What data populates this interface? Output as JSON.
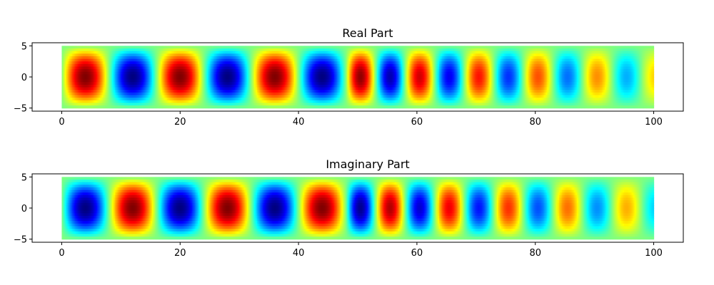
{
  "chart_data": [
    {
      "type": "heatmap",
      "title": "Real Part",
      "colormap": "jet",
      "xlim": [
        -5,
        105
      ],
      "ylim": [
        -5.5,
        5.5
      ],
      "data_extent": {
        "x": [
          0,
          100
        ],
        "y": [
          -5,
          5
        ]
      },
      "xticks": [
        0,
        20,
        40,
        60,
        80,
        100
      ],
      "yticks": [
        5,
        0,
        -5
      ],
      "xtick_labels": [
        "0",
        "20",
        "40",
        "60",
        "80",
        "100"
      ],
      "ytick_labels": [
        "5",
        "0",
        "−5"
      ],
      "field": "sin(pi*x/8)-like wave along x, cos-shaped across y, amplitude 1 up to x≈50 then period ≈10 with amplitude decaying toward ~0.35 at x=100",
      "value_range": [
        -1,
        1
      ]
    },
    {
      "type": "heatmap",
      "title": "Imaginary Part",
      "colormap": "jet",
      "xlim": [
        -5,
        105
      ],
      "ylim": [
        -5.5,
        5.5
      ],
      "data_extent": {
        "x": [
          0,
          100
        ],
        "y": [
          -5,
          5
        ]
      },
      "xticks": [
        0,
        20,
        40,
        60,
        80,
        100
      ],
      "yticks": [
        5,
        0,
        -5
      ],
      "xtick_labels": [
        "0",
        "20",
        "40",
        "60",
        "80",
        "100"
      ],
      "ytick_labels": [
        "5",
        "0",
        "−5"
      ],
      "field": "-sin(pi*x/8)-like wave along x, cos-shaped across y, amplitude 1 up to x≈50 then period ≈10 with amplitude decaying toward ~0.35 at x=100",
      "value_range": [
        -1,
        1
      ]
    }
  ]
}
